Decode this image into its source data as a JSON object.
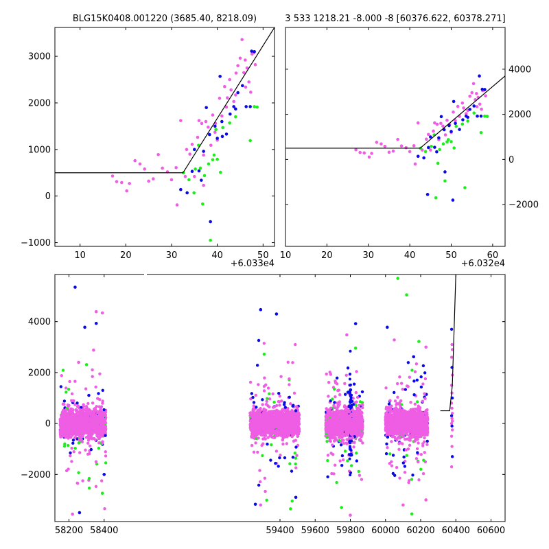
{
  "colors": {
    "blue": "#0a0ae6",
    "green": "#1aef1a",
    "magenta": "#ee5de4",
    "model": "#000000"
  },
  "chart_data": [
    {
      "type": "scatter",
      "id": "top-left",
      "title": "BLG15K0408.001220 (3685.40, 8218.09)",
      "xoffset_label": "+6.033e4",
      "xlim": [
        4.5,
        52.5
      ],
      "ylim": [
        -1080,
        3620
      ],
      "xticks": [
        10,
        20,
        30,
        40,
        50
      ],
      "yticks": [
        -1000,
        0,
        1000,
        2000,
        3000
      ],
      "yaxis_side": "left",
      "model_line": [
        [
          4.5,
          500
        ],
        [
          32.5,
          500
        ],
        [
          52.5,
          3620
        ]
      ],
      "series": [
        {
          "name": "magenta",
          "color": "magenta",
          "points": [
            [
              17.1,
              430
            ],
            [
              18,
              310
            ],
            [
              19.1,
              290
            ],
            [
              20.2,
              110
            ],
            [
              20.8,
              270
            ],
            [
              22,
              760
            ],
            [
              23.1,
              690
            ],
            [
              24.1,
              580
            ],
            [
              25,
              320
            ],
            [
              26,
              370
            ],
            [
              27.1,
              890
            ],
            [
              28,
              600
            ],
            [
              29.1,
              520
            ],
            [
              30,
              350
            ],
            [
              31,
              610
            ],
            [
              32,
              1620
            ],
            [
              33,
              420
            ],
            [
              34,
              900
            ],
            [
              34.5,
              1110
            ],
            [
              35,
              420
            ],
            [
              35.7,
              1260
            ],
            [
              36,
              1620
            ],
            [
              36.6,
              1560
            ],
            [
              37,
              880
            ],
            [
              37.5,
              1600
            ],
            [
              38,
              1480
            ],
            [
              38.6,
              1090
            ],
            [
              39,
              1740
            ],
            [
              39.6,
              1560
            ],
            [
              40,
              1200
            ],
            [
              40.5,
              2100
            ],
            [
              41,
              1720
            ],
            [
              41.6,
              2350
            ],
            [
              42,
              1910
            ],
            [
              42.7,
              2500
            ],
            [
              43,
              2280
            ],
            [
              43.6,
              2030
            ],
            [
              44,
              2170
            ],
            [
              44.5,
              2800
            ],
            [
              45,
              2960
            ],
            [
              45.4,
              3360
            ],
            [
              45.8,
              2650
            ],
            [
              46.1,
              2920
            ],
            [
              46.5,
              2750
            ],
            [
              46.9,
              2450
            ],
            [
              47.3,
              2230
            ],
            [
              47.6,
              3050
            ],
            [
              48,
              3080
            ],
            [
              48.3,
              2820
            ],
            [
              46.2,
              2340
            ],
            [
              44.1,
              2640
            ],
            [
              42.2,
              2110
            ],
            [
              39.5,
              1370
            ],
            [
              37,
              230
            ],
            [
              33.3,
              1000
            ],
            [
              31.2,
              -190
            ]
          ]
        },
        {
          "name": "blue",
          "color": "blue",
          "points": [
            [
              32,
              140
            ],
            [
              33.4,
              70
            ],
            [
              34.5,
              530
            ],
            [
              35,
              1000
            ],
            [
              36,
              540
            ],
            [
              36.5,
              340
            ],
            [
              37,
              960
            ],
            [
              37.6,
              1900
            ],
            [
              38.3,
              1320
            ],
            [
              39.5,
              1500
            ],
            [
              40,
              1240
            ],
            [
              40.6,
              2570
            ],
            [
              41,
              1600
            ],
            [
              42,
              1330
            ],
            [
              42.8,
              1760
            ],
            [
              43.6,
              1920
            ],
            [
              44,
              1870
            ],
            [
              44.5,
              2220
            ],
            [
              45.5,
              2370
            ],
            [
              46.3,
              1920
            ],
            [
              47.5,
              3110
            ],
            [
              48.1,
              3100
            ],
            [
              38.5,
              -550
            ],
            [
              47.2,
              1920
            ],
            [
              41.1,
              1280
            ]
          ]
        },
        {
          "name": "green",
          "color": "green",
          "points": [
            [
              32.6,
              500
            ],
            [
              33.8,
              350
            ],
            [
              35.2,
              580
            ],
            [
              35.9,
              1090
            ],
            [
              36.8,
              -170
            ],
            [
              37.2,
              440
            ],
            [
              38.1,
              690
            ],
            [
              38.5,
              -950
            ],
            [
              39,
              780
            ],
            [
              39.3,
              880
            ],
            [
              40,
              790
            ],
            [
              40.7,
              510
            ],
            [
              41.2,
              1470
            ],
            [
              42.7,
              1570
            ],
            [
              44,
              1700
            ],
            [
              47.2,
              1190
            ],
            [
              48.1,
              1920
            ],
            [
              48.7,
              1910
            ],
            [
              34.9,
              70
            ],
            [
              36.3,
              600
            ],
            [
              39.7,
              1430
            ]
          ]
        }
      ]
    },
    {
      "type": "scatter",
      "id": "top-right",
      "title": "3 533 1218.21 -8.000 -8 [60376.622, 60378.271]",
      "xoffset_label": "+6.032e4",
      "xlim": [
        10,
        63
      ],
      "ylim": [
        -3850,
        5850
      ],
      "xticks": [
        10,
        20,
        30,
        40,
        50,
        60
      ],
      "yticks": [
        -2000,
        0,
        2000,
        4000
      ],
      "yaxis_side": "right",
      "model_line": [
        [
          10,
          500
        ],
        [
          42.5,
          500
        ],
        [
          63,
          3700
        ]
      ],
      "series": [
        {
          "name": "magenta",
          "color": "magenta",
          "points": [
            [
              27,
              430
            ],
            [
              28,
              310
            ],
            [
              29,
              290
            ],
            [
              30.2,
              110
            ],
            [
              30.8,
              270
            ],
            [
              32,
              760
            ],
            [
              33.1,
              690
            ],
            [
              34,
              580
            ],
            [
              35,
              320
            ],
            [
              36,
              370
            ],
            [
              37.1,
              890
            ],
            [
              38,
              600
            ],
            [
              39.1,
              520
            ],
            [
              40,
              350
            ],
            [
              41,
              610
            ],
            [
              42,
              1620
            ],
            [
              43,
              420
            ],
            [
              44,
              900
            ],
            [
              44.5,
              1110
            ],
            [
              45,
              420
            ],
            [
              45.7,
              1260
            ],
            [
              46,
              1620
            ],
            [
              46.6,
              1560
            ],
            [
              47,
              880
            ],
            [
              47.5,
              1600
            ],
            [
              48,
              1480
            ],
            [
              48.6,
              1090
            ],
            [
              49,
              1740
            ],
            [
              49.6,
              1560
            ],
            [
              50,
              1200
            ],
            [
              50.5,
              2100
            ],
            [
              51,
              1720
            ],
            [
              51.6,
              2350
            ],
            [
              52,
              1910
            ],
            [
              52.7,
              2500
            ],
            [
              53,
              2280
            ],
            [
              53.6,
              2030
            ],
            [
              54,
              2170
            ],
            [
              54.5,
              2800
            ],
            [
              55,
              2960
            ],
            [
              55.4,
              3360
            ],
            [
              55.8,
              2650
            ],
            [
              56.1,
              2920
            ],
            [
              56.5,
              2750
            ],
            [
              56.9,
              2450
            ],
            [
              57.3,
              2230
            ],
            [
              57.6,
              3050
            ],
            [
              58,
              3080
            ],
            [
              58.3,
              2820
            ],
            [
              56.2,
              2340
            ],
            [
              41.3,
              -200
            ]
          ]
        },
        {
          "name": "blue",
          "color": "blue",
          "points": [
            [
              42,
              140
            ],
            [
              43.4,
              70
            ],
            [
              44.5,
              530
            ],
            [
              45,
              1000
            ],
            [
              46,
              540
            ],
            [
              46.5,
              340
            ],
            [
              47,
              960
            ],
            [
              47.6,
              1900
            ],
            [
              48.3,
              1320
            ],
            [
              49.5,
              1500
            ],
            [
              50,
              1240
            ],
            [
              50.6,
              2570
            ],
            [
              51,
              1600
            ],
            [
              52,
              1330
            ],
            [
              52.8,
              1760
            ],
            [
              53.6,
              1920
            ],
            [
              54,
              1870
            ],
            [
              54.5,
              2220
            ],
            [
              55.5,
              2370
            ],
            [
              56.3,
              1920
            ],
            [
              56.8,
              3700
            ],
            [
              57.5,
              3110
            ],
            [
              58.1,
              3100
            ],
            [
              44.3,
              -1550
            ],
            [
              48.5,
              -550
            ],
            [
              50.4,
              -1800
            ],
            [
              57.2,
              1920
            ]
          ]
        },
        {
          "name": "green",
          "color": "green",
          "points": [
            [
              42.6,
              500
            ],
            [
              43.8,
              350
            ],
            [
              45.2,
              580
            ],
            [
              45.9,
              1090
            ],
            [
              46.8,
              -170
            ],
            [
              47.2,
              440
            ],
            [
              48.1,
              690
            ],
            [
              48.5,
              -950
            ],
            [
              49,
              780
            ],
            [
              49.3,
              880
            ],
            [
              50,
              790
            ],
            [
              50.7,
              510
            ],
            [
              51.2,
              1470
            ],
            [
              52.7,
              1570
            ],
            [
              53.3,
              -1250
            ],
            [
              54,
              1700
            ],
            [
              55.5,
              2060
            ],
            [
              57.2,
              1190
            ],
            [
              58.1,
              1920
            ],
            [
              58.7,
              1910
            ],
            [
              46.3,
              -1700
            ]
          ]
        }
      ]
    },
    {
      "type": "scatter",
      "id": "bottom",
      "title": "",
      "xoffset_label": "",
      "xlim": [
        58120,
        60680
      ],
      "ylim": [
        -3850,
        5850
      ],
      "xticks": [
        58200,
        58400,
        59400,
        59600,
        59800,
        60000,
        60200,
        60400,
        60600
      ],
      "yticks": [
        -2000,
        0,
        2000,
        4000
      ],
      "yaxis_side": "left",
      "model_line": [
        [
          60312,
          500
        ],
        [
          60365,
          500
        ],
        [
          60380,
          1500
        ],
        [
          60400,
          5850
        ]
      ],
      "seasons": [
        {
          "start": 58150,
          "end": 58410,
          "core_sd": 420,
          "tail_sd": 1900
        },
        {
          "start": 59230,
          "end": 59510,
          "core_sd": 420,
          "tail_sd": 2100
        },
        {
          "start": 59660,
          "end": 59870,
          "core_sd": 420,
          "tail_sd": 2000
        },
        {
          "start": 60000,
          "end": 60240,
          "core_sd": 420,
          "tail_sd": 2000
        }
      ],
      "bursts": [
        {
          "x": 60378,
          "values": [
            3700,
            3100,
            2900,
            2600,
            2200,
            1900,
            1500,
            1200,
            1000,
            800,
            600,
            400,
            300,
            200,
            100,
            0,
            -100,
            -250,
            -500,
            -900,
            -1300,
            -1700
          ]
        }
      ],
      "outliers": {
        "blue": [
          [
            58235,
            5350
          ],
          [
            58290,
            3780
          ],
          [
            58355,
            3930
          ],
          [
            59290,
            4470
          ],
          [
            59380,
            4300
          ],
          [
            59830,
            3920
          ],
          [
            60010,
            3780
          ],
          [
            60160,
            2620
          ],
          [
            58260,
            -3500
          ],
          [
            58400,
            -2000
          ],
          [
            59260,
            -3170
          ],
          [
            59490,
            -2900
          ]
        ],
        "magenta": [
          [
            58390,
            4340
          ],
          [
            58355,
            4390
          ],
          [
            58340,
            2880
          ],
          [
            58255,
            2400
          ],
          [
            59780,
            3480
          ],
          [
            60050,
            3280
          ],
          [
            60230,
            3000
          ],
          [
            58220,
            -3560
          ],
          [
            59290,
            -3200
          ],
          [
            59800,
            -3600
          ],
          [
            60100,
            -3200
          ],
          [
            60230,
            -3000
          ]
        ],
        "green": [
          [
            60070,
            5700
          ],
          [
            60120,
            5050
          ],
          [
            60190,
            3220
          ],
          [
            58300,
            2310
          ],
          [
            59310,
            2720
          ],
          [
            59830,
            2960
          ],
          [
            58390,
            -2740
          ],
          [
            59460,
            -3350
          ],
          [
            59750,
            -3300
          ],
          [
            60150,
            -3550
          ]
        ]
      }
    }
  ]
}
